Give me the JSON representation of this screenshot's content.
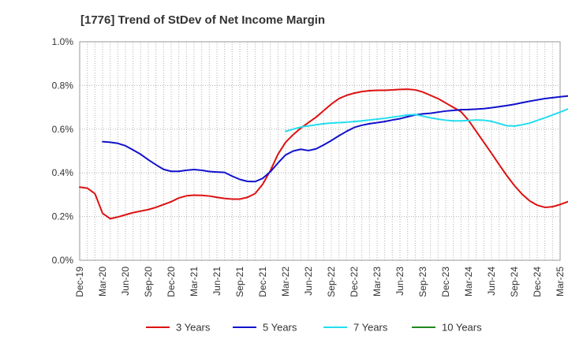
{
  "chart_data": {
    "type": "line",
    "title": "[1776]  Trend of StDev of Net Income Margin",
    "xlabel": "",
    "ylabel": "",
    "ylim": [
      0,
      1.0
    ],
    "y_ticks": [
      "0.0%",
      "0.2%",
      "0.4%",
      "0.6%",
      "0.8%",
      "1.0%"
    ],
    "x_ticks": [
      "Dec-19",
      "Mar-20",
      "Jun-20",
      "Sep-20",
      "Dec-20",
      "Mar-21",
      "Jun-21",
      "Sep-21",
      "Dec-21",
      "Mar-22",
      "Jun-22",
      "Sep-22",
      "Dec-22",
      "Mar-23",
      "Jun-23",
      "Sep-23",
      "Dec-23",
      "Mar-24",
      "Jun-24",
      "Sep-24",
      "Dec-24",
      "Mar-25"
    ],
    "x_range_months": [
      0,
      63
    ],
    "grid": true,
    "legend_position": "bottom",
    "series": [
      {
        "name": "3 Years",
        "color": "#dd1111",
        "points": [
          [
            0,
            0.335
          ],
          [
            1,
            0.33
          ],
          [
            2,
            0.305
          ],
          [
            3,
            0.215
          ],
          [
            4,
            0.19
          ],
          [
            5,
            0.198
          ],
          [
            6,
            0.208
          ],
          [
            7,
            0.218
          ],
          [
            8,
            0.225
          ],
          [
            9,
            0.232
          ],
          [
            10,
            0.242
          ],
          [
            11,
            0.255
          ],
          [
            12,
            0.268
          ],
          [
            13,
            0.285
          ],
          [
            14,
            0.295
          ],
          [
            15,
            0.298
          ],
          [
            16,
            0.297
          ],
          [
            17,
            0.294
          ],
          [
            18,
            0.288
          ],
          [
            19,
            0.283
          ],
          [
            20,
            0.28
          ],
          [
            21,
            0.28
          ],
          [
            22,
            0.288
          ],
          [
            23,
            0.305
          ],
          [
            24,
            0.348
          ],
          [
            25,
            0.41
          ],
          [
            26,
            0.485
          ],
          [
            27,
            0.54
          ],
          [
            28,
            0.575
          ],
          [
            29,
            0.605
          ],
          [
            30,
            0.63
          ],
          [
            31,
            0.655
          ],
          [
            32,
            0.685
          ],
          [
            33,
            0.715
          ],
          [
            34,
            0.74
          ],
          [
            35,
            0.755
          ],
          [
            36,
            0.765
          ],
          [
            37,
            0.772
          ],
          [
            38,
            0.776
          ],
          [
            39,
            0.778
          ],
          [
            40,
            0.778
          ],
          [
            41,
            0.78
          ],
          [
            42,
            0.782
          ],
          [
            43,
            0.783
          ],
          [
            44,
            0.78
          ],
          [
            45,
            0.77
          ],
          [
            46,
            0.755
          ],
          [
            47,
            0.74
          ],
          [
            48,
            0.72
          ],
          [
            49,
            0.7
          ],
          [
            50,
            0.68
          ],
          [
            51,
            0.64
          ],
          [
            52,
            0.59
          ],
          [
            53,
            0.54
          ],
          [
            54,
            0.49
          ],
          [
            55,
            0.438
          ],
          [
            56,
            0.388
          ],
          [
            57,
            0.342
          ],
          [
            58,
            0.303
          ],
          [
            59,
            0.272
          ],
          [
            60,
            0.252
          ],
          [
            61,
            0.242
          ],
          [
            62,
            0.245
          ],
          [
            63,
            0.255
          ],
          [
            64,
            0.268
          ],
          [
            65,
            0.276
          ],
          [
            66,
            0.279
          ]
        ]
      },
      {
        "name": "5 Years",
        "color": "#1111cc",
        "points": [
          [
            3,
            0.543
          ],
          [
            4,
            0.54
          ],
          [
            5,
            0.535
          ],
          [
            6,
            0.524
          ],
          [
            7,
            0.505
          ],
          [
            8,
            0.485
          ],
          [
            9,
            0.46
          ],
          [
            10,
            0.437
          ],
          [
            11,
            0.416
          ],
          [
            12,
            0.407
          ],
          [
            13,
            0.407
          ],
          [
            14,
            0.412
          ],
          [
            15,
            0.415
          ],
          [
            16,
            0.412
          ],
          [
            17,
            0.406
          ],
          [
            18,
            0.404
          ],
          [
            19,
            0.402
          ],
          [
            20,
            0.385
          ],
          [
            21,
            0.37
          ],
          [
            22,
            0.361
          ],
          [
            23,
            0.36
          ],
          [
            24,
            0.375
          ],
          [
            25,
            0.405
          ],
          [
            26,
            0.445
          ],
          [
            27,
            0.482
          ],
          [
            28,
            0.5
          ],
          [
            29,
            0.508
          ],
          [
            30,
            0.502
          ],
          [
            31,
            0.51
          ],
          [
            32,
            0.528
          ],
          [
            33,
            0.548
          ],
          [
            34,
            0.57
          ],
          [
            35,
            0.59
          ],
          [
            36,
            0.608
          ],
          [
            37,
            0.618
          ],
          [
            38,
            0.625
          ],
          [
            39,
            0.63
          ],
          [
            40,
            0.635
          ],
          [
            41,
            0.642
          ],
          [
            42,
            0.648
          ],
          [
            43,
            0.657
          ],
          [
            44,
            0.665
          ],
          [
            45,
            0.67
          ],
          [
            46,
            0.673
          ],
          [
            47,
            0.678
          ],
          [
            48,
            0.683
          ],
          [
            49,
            0.686
          ],
          [
            50,
            0.689
          ],
          [
            51,
            0.69
          ],
          [
            52,
            0.692
          ],
          [
            53,
            0.694
          ],
          [
            54,
            0.698
          ],
          [
            55,
            0.703
          ],
          [
            56,
            0.708
          ],
          [
            57,
            0.714
          ],
          [
            58,
            0.721
          ],
          [
            59,
            0.728
          ],
          [
            60,
            0.734
          ],
          [
            61,
            0.74
          ],
          [
            62,
            0.744
          ],
          [
            63,
            0.748
          ],
          [
            64,
            0.752
          ],
          [
            65,
            0.755
          ]
        ]
      },
      {
        "name": "7 Years",
        "color": "#22ddee",
        "points": [
          [
            27,
            0.59
          ],
          [
            28,
            0.6
          ],
          [
            29,
            0.61
          ],
          [
            30,
            0.615
          ],
          [
            31,
            0.62
          ],
          [
            32,
            0.625
          ],
          [
            33,
            0.628
          ],
          [
            34,
            0.63
          ],
          [
            35,
            0.632
          ],
          [
            36,
            0.635
          ],
          [
            37,
            0.638
          ],
          [
            38,
            0.642
          ],
          [
            39,
            0.646
          ],
          [
            40,
            0.65
          ],
          [
            41,
            0.655
          ],
          [
            42,
            0.66
          ],
          [
            43,
            0.665
          ],
          [
            44,
            0.667
          ],
          [
            45,
            0.66
          ],
          [
            46,
            0.652
          ],
          [
            47,
            0.646
          ],
          [
            48,
            0.641
          ],
          [
            49,
            0.638
          ],
          [
            50,
            0.638
          ],
          [
            51,
            0.64
          ],
          [
            52,
            0.642
          ],
          [
            53,
            0.641
          ],
          [
            54,
            0.636
          ],
          [
            55,
            0.626
          ],
          [
            56,
            0.616
          ],
          [
            57,
            0.614
          ],
          [
            58,
            0.62
          ],
          [
            59,
            0.628
          ],
          [
            60,
            0.64
          ],
          [
            61,
            0.652
          ],
          [
            62,
            0.665
          ],
          [
            63,
            0.678
          ],
          [
            64,
            0.692
          ],
          [
            65,
            0.705
          ]
        ]
      },
      {
        "name": "10 Years",
        "color": "#228822",
        "points": []
      }
    ]
  }
}
